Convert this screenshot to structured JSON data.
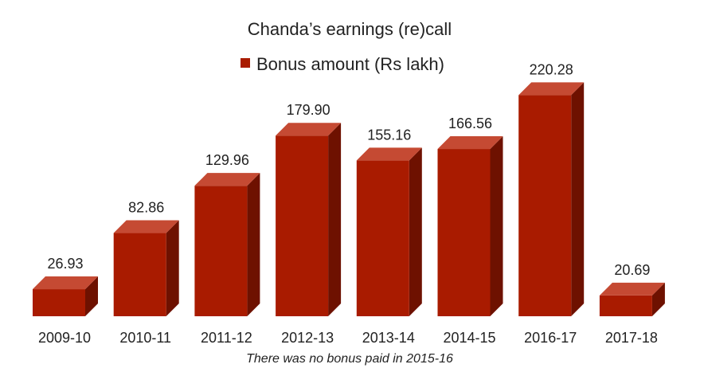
{
  "chart_data": {
    "type": "bar",
    "title": "Chanda’s earnings (re)call",
    "categories": [
      "2009-10",
      "2010-11",
      "2011-12",
      "2012-13",
      "2013-14",
      "2014-15",
      "2016-17",
      "2017-18"
    ],
    "series": [
      {
        "name": "Bonus amount (Rs lakh)",
        "values": [
          26.93,
          82.86,
          129.96,
          179.9,
          155.16,
          166.56,
          220.28,
          20.69
        ],
        "labels": [
          "26.93",
          "82.86",
          "129.96",
          "179.90",
          "155.16",
          "166.56",
          "220.28",
          "20.69"
        ]
      }
    ],
    "xlabel": "",
    "ylabel": "",
    "ylim": [
      0,
      230
    ],
    "grid": false,
    "legend_position": "top",
    "style": "3d-bar",
    "colors": {
      "front": "#a91b00",
      "top": "#c54a33",
      "side": "#6e1100"
    },
    "note": "There was no bonus paid in 2015-16"
  }
}
